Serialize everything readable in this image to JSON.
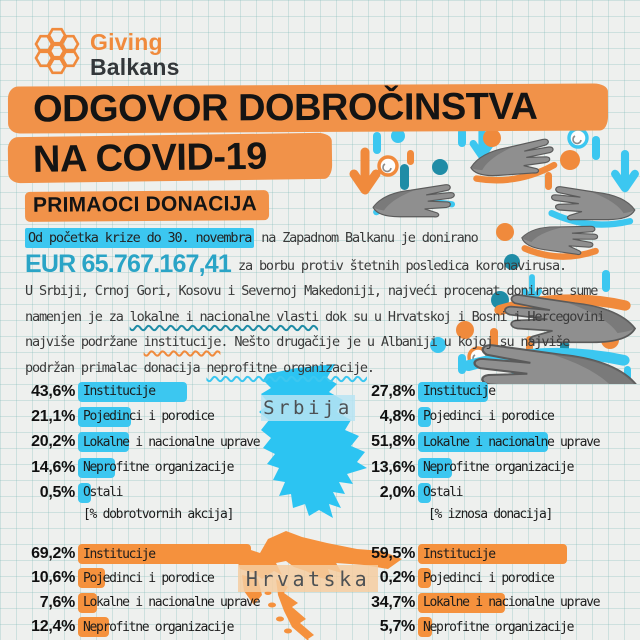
{
  "brand": {
    "line1": "Giving",
    "line2": "Balkans"
  },
  "title": {
    "line1": "ODGOVOR DOBROČINSTVA",
    "line2": "NA COVID-19"
  },
  "section_heading": "PRIMAOCI DONACIJA",
  "intro": {
    "l1_highlight": "Od početka krize do 30. novembra",
    "l1_rest": " na Zapadnom Balkanu je donirano",
    "amount": "EUR 65.767.167,41",
    "l2_rest": "za borbu protiv štetnih posledica koronavirusa.",
    "l3": "U Srbiji, Crnoj Gori, Kosovu i Severnoj Makedoniji, najveći procenat donirane sume",
    "l4_pre": "namenjen je za ",
    "l4_wavy": "lokalne i nacionalne vlasti",
    "l4_post": " dok su u Hrvatskoj i Bosni i Hercegovini",
    "l5_pre": "najviše podržane ",
    "l5_wavy": "institucije",
    "l5_post": ". Nešto drugačije je u Albaniji u kojoj su najviše",
    "l6_pre": "podržan primalac donacija ",
    "l6_wavy": "neprofitne organizacije",
    "l6_post": "."
  },
  "colors": {
    "orange": "#f5913d",
    "cyan": "#3cc7f0",
    "teal": "#1f8ca6",
    "amount_blue": "#2aa4c6",
    "band_orange": "#f19249"
  },
  "serbia": {
    "map_label": "Srbija",
    "actions": {
      "caption": "[% dobrotvornih akcija]",
      "rows": [
        {
          "pct": "43,6%",
          "label": "Institucije"
        },
        {
          "pct": "21,1%",
          "label": "Pojedinci i porodice"
        },
        {
          "pct": "20,2%",
          "label": "Lokalne i nacionalne uprave"
        },
        {
          "pct": "14,6%",
          "label": "Neprofitne organizacije"
        },
        {
          "pct": "0,5%",
          "label": "Ostali"
        }
      ]
    },
    "amounts": {
      "caption": "[% iznosa donacija]",
      "rows": [
        {
          "pct": "27,8%",
          "label": "Institucije"
        },
        {
          "pct": "4,8%",
          "label": "Pojedinci i porodice"
        },
        {
          "pct": "51,8%",
          "label": "Lokalne i nacionalne uprave"
        },
        {
          "pct": "13,6%",
          "label": "Neprofitne organizacije"
        },
        {
          "pct": "2,0%",
          "label": "Ostali"
        }
      ]
    }
  },
  "croatia": {
    "map_label": "Hrvatska",
    "actions": {
      "rows": [
        {
          "pct": "69,2%",
          "label": "Institucije"
        },
        {
          "pct": "10,6%",
          "label": "Pojedinci i porodice"
        },
        {
          "pct": "7,6%",
          "label": "Lokalne i nacionalne uprave"
        },
        {
          "pct": "12,4%",
          "label": "Neprofitne organizacije"
        }
      ]
    },
    "amounts": {
      "rows": [
        {
          "pct": "59,5%",
          "label": "Institucije"
        },
        {
          "pct": "0,2%",
          "label": "Pojedinci i porodice"
        },
        {
          "pct": "34,7%",
          "label": "Lokalne i nacionalne uprave"
        },
        {
          "pct": "5,7%",
          "label": "Neprofitne organizacije"
        }
      ]
    }
  },
  "chart_data": [
    {
      "type": "bar",
      "title": "Srbija",
      "categories": [
        "Institucije",
        "Pojedinci i porodice",
        "Lokalne i nacionalne uprave",
        "Neprofitne organizacije",
        "Ostali"
      ],
      "series": [
        {
          "name": "% dobrotvornih akcija",
          "values": [
            43.6,
            21.1,
            20.2,
            14.6,
            0.5
          ]
        },
        {
          "name": "% iznosa donacija",
          "values": [
            27.8,
            4.8,
            51.8,
            13.6,
            2.0
          ]
        }
      ],
      "xlabel": "",
      "ylabel": "%",
      "ylim": [
        0,
        100
      ],
      "legend_position": "below-columns",
      "grid": false
    },
    {
      "type": "bar",
      "title": "Hrvatska",
      "categories": [
        "Institucije",
        "Pojedinci i porodice",
        "Lokalne i nacionalne uprave",
        "Neprofitne organizacije"
      ],
      "series": [
        {
          "name": "% dobrotvornih akcija",
          "values": [
            69.2,
            10.6,
            7.6,
            12.4
          ]
        },
        {
          "name": "% iznosa donacija",
          "values": [
            59.5,
            0.2,
            34.7,
            5.7
          ]
        }
      ],
      "xlabel": "",
      "ylabel": "%",
      "ylim": [
        0,
        100
      ],
      "legend_position": "none",
      "grid": false
    }
  ]
}
